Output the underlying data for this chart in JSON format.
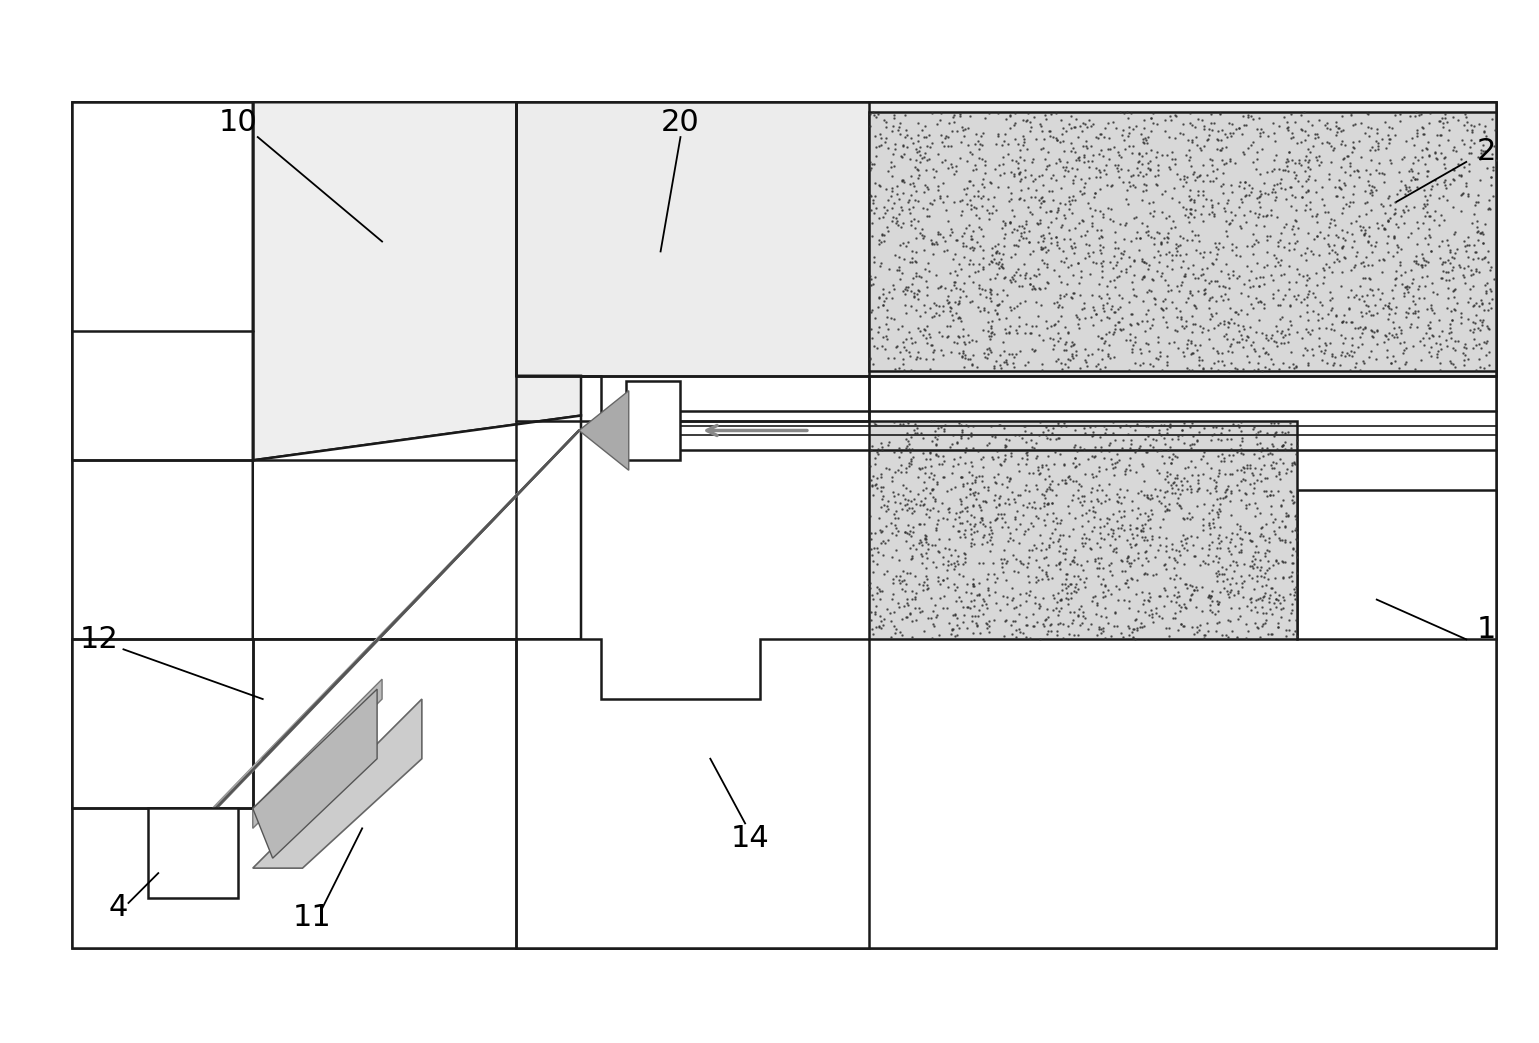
{
  "bg_color": "#ffffff",
  "line_color": "#1a1a1a",
  "gray_fill": "#d0d0d0",
  "light_fill": "#f0f0f0",
  "beam_color": "#808080",
  "stipple_color": "#555555",
  "figure_size": [
    15.39,
    10.43
  ],
  "dpi": 100
}
